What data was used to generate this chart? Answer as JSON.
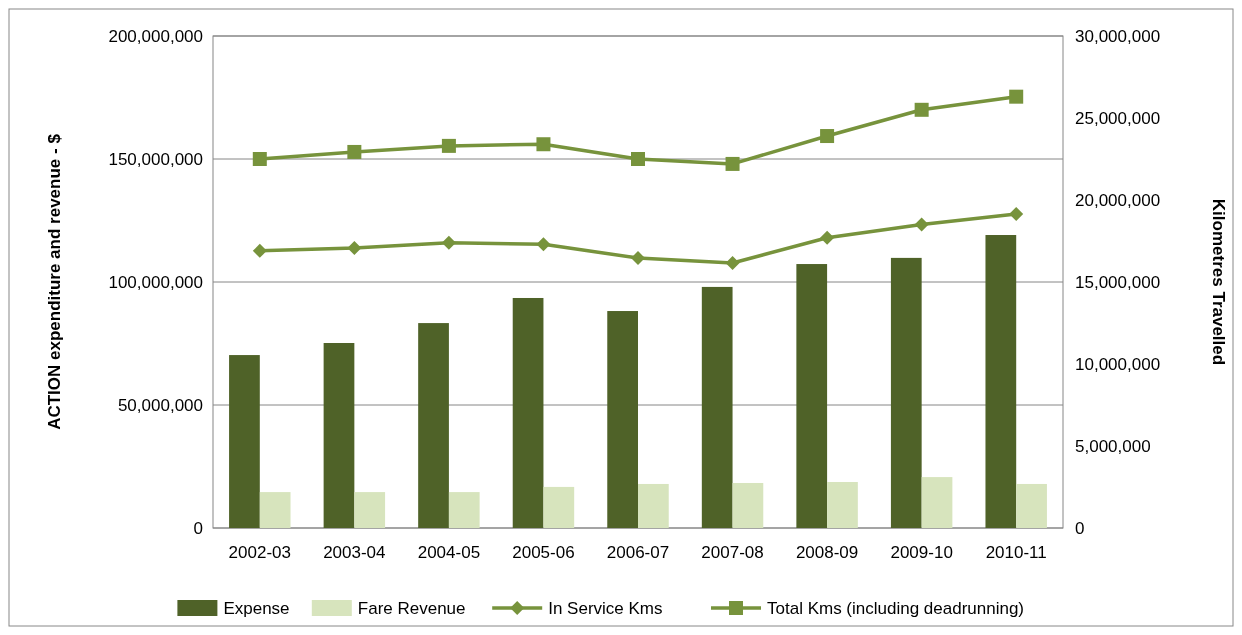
{
  "chart_data": {
    "type": "bar",
    "ylabel": "ACTION expenditure and revenue - $",
    "y2label": "Kilometres Travelled",
    "categories": [
      "2002-03",
      "2003-04",
      "2004-05",
      "2005-06",
      "2006-07",
      "2007-08",
      "2008-09",
      "2009-10",
      "2010-11"
    ],
    "series": [
      {
        "name": "Expense",
        "color": "#4f6228",
        "values": [
          70300000,
          75200000,
          83300000,
          93500000,
          88200000,
          98000000,
          107300000,
          109800000,
          119100000
        ]
      },
      {
        "name": "Fare Revenue",
        "color": "#d7e4bd",
        "values": [
          14600000,
          14600000,
          14600000,
          16700000,
          17900000,
          18300000,
          18700000,
          20700000,
          17900000
        ]
      },
      {
        "name": "In Service Kms",
        "type": "line",
        "axis": "y2",
        "marker": "diamond",
        "color": "#77933c",
        "values": [
          16900000,
          17070000,
          17400000,
          17300000,
          16460000,
          16160000,
          17700000,
          18500000,
          19150000
        ]
      },
      {
        "name": "Total Kms (including deadrunning)",
        "type": "line",
        "axis": "y2",
        "marker": "square",
        "color": "#77933c",
        "values": [
          22500000,
          22930000,
          23300000,
          23400000,
          22500000,
          22200000,
          23900000,
          25500000,
          26300000
        ]
      }
    ],
    "ylim": [
      0,
      200000000
    ],
    "yticks": [
      {
        "value": 0,
        "label": "0"
      },
      {
        "value": 50000000,
        "label": "50,000,000"
      },
      {
        "value": 100000000,
        "label": "100,000,000"
      },
      {
        "value": 150000000,
        "label": "150,000,000"
      },
      {
        "value": 200000000,
        "label": "200,000,000"
      }
    ],
    "y2lim": [
      0,
      30000000
    ],
    "y2ticks": [
      {
        "value": 0,
        "label": "0"
      },
      {
        "value": 5000000,
        "label": "5,000,000"
      },
      {
        "value": 10000000,
        "label": "10,000,000"
      },
      {
        "value": 15000000,
        "label": "15,000,000"
      },
      {
        "value": 20000000,
        "label": "20,000,000"
      },
      {
        "value": 25000000,
        "label": "25,000,000"
      },
      {
        "value": 30000000,
        "label": "30,000,000"
      }
    ],
    "grid": "y",
    "legend": "bottom",
    "line_style": "solid"
  }
}
